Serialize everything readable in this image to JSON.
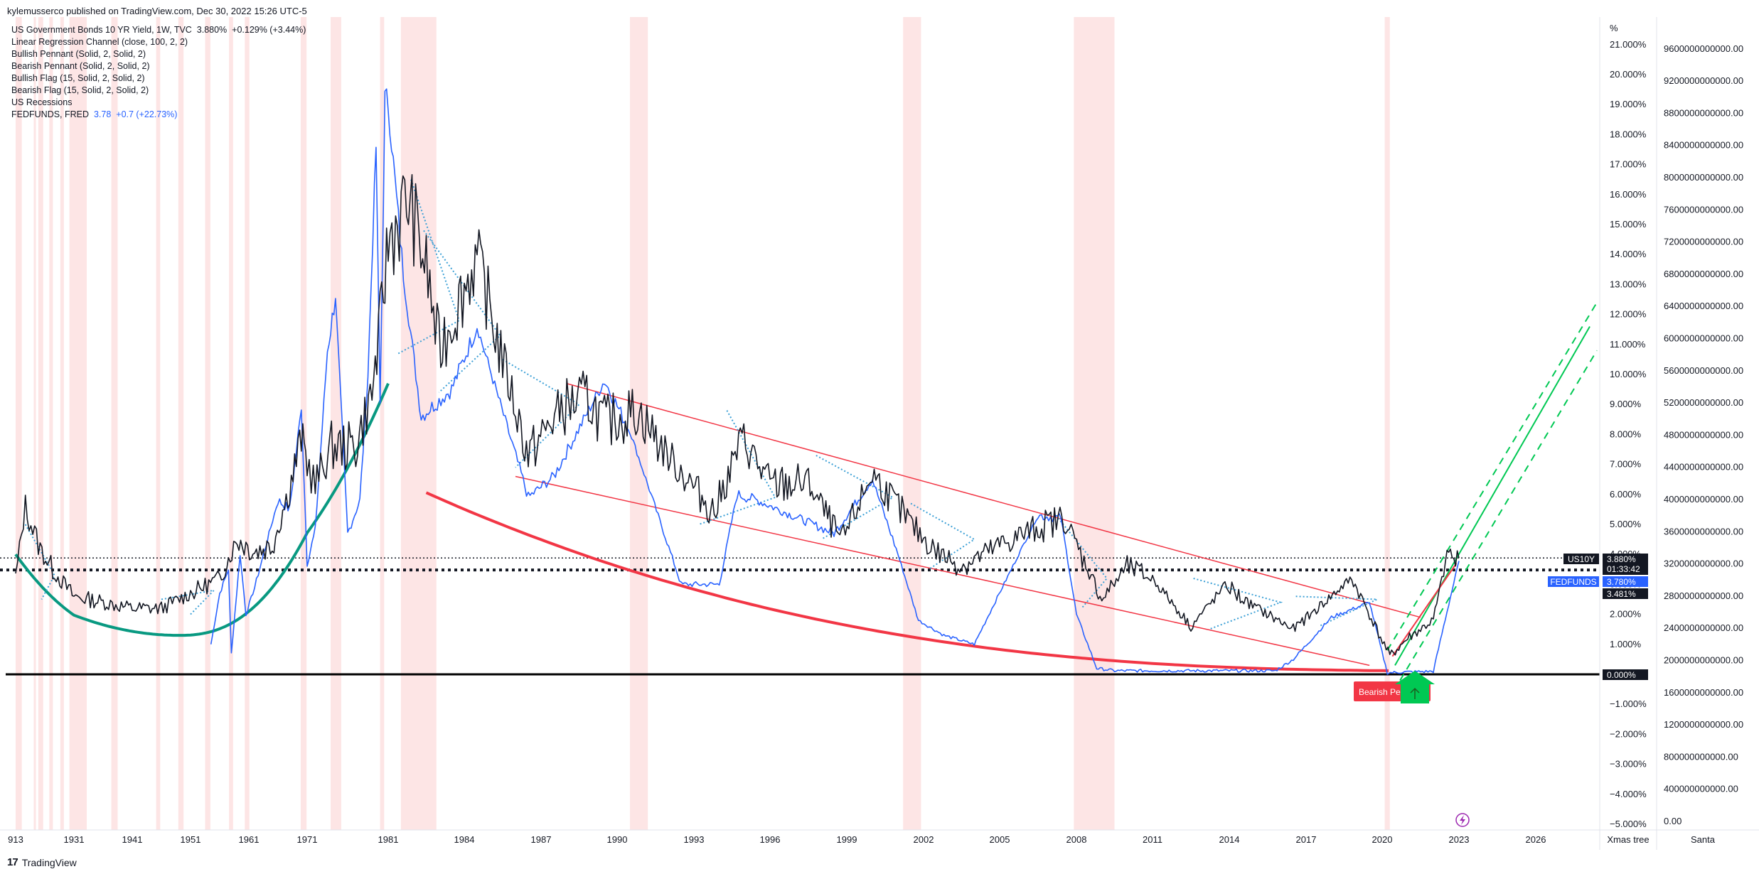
{
  "header": {
    "published": "kylemusserco published on TradingView.com, Dec 30, 2022 15:26 UTC-5"
  },
  "legend": {
    "main_series": "US Government Bonds 10 YR Yield, 1W, TVC",
    "main_value": "3.880%",
    "main_change": "+0.129% (+3.44%)",
    "indicators": [
      "Linear Regression Channel (close, 100, 2, 2)",
      "Bullish Pennant (Solid, 2, Solid, 2)",
      "Bearish Pennant (Solid, 2, Solid, 2)",
      "Bullish Flag (15, Solid, 2, Solid, 2)",
      "Bearish Flag (15, Solid, 2, Solid, 2)",
      "US Recessions"
    ],
    "overlay_series": "FEDFUNDS, FRED",
    "overlay_value": "3.78",
    "overlay_change": "+0.7 (+22.73%)"
  },
  "right_axis": {
    "unit": "%",
    "ticks": [
      "21.000%",
      "20.000%",
      "19.000%",
      "18.000%",
      "17.000%",
      "16.000%",
      "15.000%",
      "14.000%",
      "13.000%",
      "12.000%",
      "11.000%",
      "10.000%",
      "9.000%",
      "8.000%",
      "7.000%",
      "6.000%",
      "5.000%",
      "4.000%",
      "3.000%",
      "2.000%",
      "1.000%",
      "0.000%",
      "−1.000%",
      "−2.000%",
      "−3.000%",
      "−4.000%",
      "−5.000%"
    ],
    "tick_values": [
      21,
      20,
      19,
      18,
      17,
      16,
      15,
      14,
      13,
      12,
      11,
      10,
      9,
      8,
      7,
      6,
      5,
      4,
      3,
      2,
      1,
      0,
      -1,
      -2,
      -3,
      -4,
      -5
    ],
    "range": [
      -5,
      21
    ],
    "labels": {
      "us10y_name": "US10Y",
      "us10y_value": "3.880%",
      "countdown": "01:33:42",
      "fedfunds_name": "FEDFUNDS",
      "fedfunds_value": "3.780%",
      "other_value": "3.481%",
      "zero_value": "0.000%"
    }
  },
  "far_right_axis": {
    "ticks": [
      "9600000000000.00",
      "9200000000000.00",
      "8800000000000.00",
      "8400000000000.00",
      "8000000000000.00",
      "7600000000000.00",
      "7200000000000.00",
      "6800000000000.00",
      "6400000000000.00",
      "6000000000000.00",
      "5600000000000.00",
      "5200000000000.00",
      "4800000000000.00",
      "4400000000000.00",
      "4000000000000.00",
      "3600000000000.00",
      "3200000000000.00",
      "2800000000000.00",
      "2400000000000.00",
      "2000000000000.00",
      "1600000000000.00",
      "1200000000000.00",
      "800000000000.00",
      "400000000000.00",
      "0.00"
    ],
    "tick_values": [
      9600,
      9200,
      8800,
      8400,
      8000,
      7600,
      7200,
      6800,
      6400,
      6000,
      5600,
      5200,
      4800,
      4400,
      4000,
      3600,
      3200,
      2800,
      2400,
      2000,
      1600,
      1200,
      800,
      400,
      0
    ]
  },
  "bottom_axis": {
    "ticks": [
      "913",
      "1931",
      "1941",
      "1951",
      "1961",
      "1971",
      "1981",
      "1984",
      "1987",
      "1990",
      "1993",
      "1996",
      "1999",
      "2002",
      "2005",
      "2008",
      "2011",
      "2014",
      "2017",
      "2020",
      "2023",
      "2026"
    ],
    "left_label": "Xmas tree",
    "right_label": "Santa"
  },
  "annotations": {
    "bearish_label": "Bearish Pe",
    "bolt_icon": "lightning-icon",
    "up_arrow_icon": "up-arrow-icon"
  },
  "footer": {
    "brand": "TradingView",
    "logo_glyph": "17"
  },
  "colors": {
    "us10y": "#131722",
    "fedfunds": "#2962ff",
    "recession": "#fde0e0",
    "regression": "#f23645",
    "bowl": "#f23645",
    "cup": "#089981",
    "growth": "#00c853",
    "pennant": "#3ca0d6"
  },
  "chart_data": {
    "type": "line",
    "title": "US Government Bonds 10 YR Yield, 1W, TVC",
    "ylabel": "%",
    "ylim": [
      -5,
      21
    ],
    "x_ticks": [
      "913",
      "1931",
      "1941",
      "1951",
      "1961",
      "1971",
      "1981",
      "1984",
      "1987",
      "1990",
      "1993",
      "1996",
      "1999",
      "2002",
      "2005",
      "2008",
      "2011",
      "2014",
      "2017",
      "2020",
      "2023",
      "2026"
    ],
    "series": [
      {
        "name": "US10Y",
        "x": [
          1913,
          1916,
          1920,
          1925,
          1931,
          1936,
          1941,
          1946,
          1951,
          1956,
          1959,
          1962,
          1965,
          1968,
          1970,
          1972,
          1974,
          1977,
          1979,
          1980,
          1981,
          1981.8,
          1982.5,
          1983,
          1984.5,
          1985.5,
          1986.5,
          1987.8,
          1988.8,
          1989.5,
          1990.8,
          1991.8,
          1993.8,
          1994.9,
          1996,
          1997.5,
          1998.8,
          2000,
          2001.5,
          2002.5,
          2003.5,
          2005,
          2006.5,
          2007.5,
          2008.3,
          2009,
          2010,
          2011,
          2012.5,
          2013.9,
          2014.5,
          2016.5,
          2018.8,
          2019.5,
          2020.3,
          2021,
          2021.5,
          2022,
          2022.6,
          2022.8,
          2023
        ],
        "values": [
          3.2,
          5.6,
          4.3,
          3.4,
          2.6,
          2.4,
          2.2,
          2.2,
          2.7,
          3.2,
          4.5,
          4.1,
          4.3,
          6.2,
          7.9,
          6.3,
          7.6,
          7.6,
          9.4,
          11.5,
          14.5,
          15.8,
          13.6,
          10.8,
          13.9,
          10.5,
          7.3,
          8.9,
          9.2,
          8.4,
          8.8,
          7.5,
          5.4,
          7.9,
          6.3,
          6.4,
          4.4,
          6.7,
          5.0,
          4.1,
          3.6,
          4.3,
          4.9,
          5.2,
          3.8,
          2.5,
          3.6,
          3.2,
          1.6,
          3.0,
          2.5,
          1.5,
          3.2,
          2.0,
          0.6,
          1.2,
          1.5,
          1.8,
          4.2,
          3.7,
          3.88
        ]
      },
      {
        "name": "FEDFUNDS",
        "x": [
          1954.5,
          1956,
          1957.5,
          1958,
          1959.5,
          1960.5,
          1962,
          1966,
          1968,
          1970,
          1971,
          1972,
          1973.5,
          1974.5,
          1976,
          1977.5,
          1978.5,
          1979.5,
          1980,
          1980.6,
          1981,
          1981.6,
          1982.3,
          1983.5,
          1984.5,
          1986.5,
          1987.5,
          1989.5,
          1990.5,
          1992.5,
          1994,
          1994.7,
          1995.5,
          1998.5,
          2000,
          2001,
          2001.8,
          2002.8,
          2004,
          2006.5,
          2007.4,
          2008,
          2008.8,
          2009.5,
          2015.8,
          2016.5,
          2018,
          2019.5,
          2020.2,
          2021,
          2022,
          2022.4,
          2023
        ],
        "values": [
          1.0,
          2.7,
          3.5,
          0.7,
          4.0,
          2.0,
          2.9,
          5.8,
          5.5,
          8.9,
          3.7,
          4.8,
          10.8,
          12.6,
          4.7,
          5.8,
          10.0,
          17.6,
          9.0,
          19.1,
          19.0,
          13.3,
          8.6,
          9.5,
          11.6,
          5.9,
          6.6,
          9.8,
          8.1,
          3.0,
          3.0,
          6.0,
          5.8,
          4.7,
          6.5,
          4.0,
          1.8,
          1.3,
          1.0,
          5.3,
          5.2,
          2.0,
          0.2,
          0.12,
          0.12,
          0.5,
          1.9,
          2.4,
          0.05,
          0.08,
          0.1,
          1.6,
          3.78
        ]
      }
    ],
    "recessions": [
      [
        1913,
        1914.9
      ],
      [
        1918.6,
        1919.2
      ],
      [
        1920,
        1921.5
      ],
      [
        1923.4,
        1924.5
      ],
      [
        1926.8,
        1927.9
      ],
      [
        1929.6,
        1933.2
      ],
      [
        1937.4,
        1938.5
      ],
      [
        1945.1,
        1945.8
      ],
      [
        1948.9,
        1949.8
      ],
      [
        1953.5,
        1954.4
      ],
      [
        1957.6,
        1958.3
      ],
      [
        1960.3,
        1961.1
      ],
      [
        1969.9,
        1970.9
      ],
      [
        1973.9,
        1975.2
      ],
      [
        1980,
        1980.5
      ],
      [
        1981.5,
        1982.9
      ],
      [
        1990.5,
        1991.2
      ],
      [
        2001.2,
        2001.9
      ],
      [
        2007.9,
        2009.5
      ],
      [
        2020.1,
        2020.3
      ]
    ],
    "annotations": [
      "Linear Regression Channel (close, 100, 2, 2)",
      "US Recessions",
      "Bearish Pennant"
    ]
  }
}
